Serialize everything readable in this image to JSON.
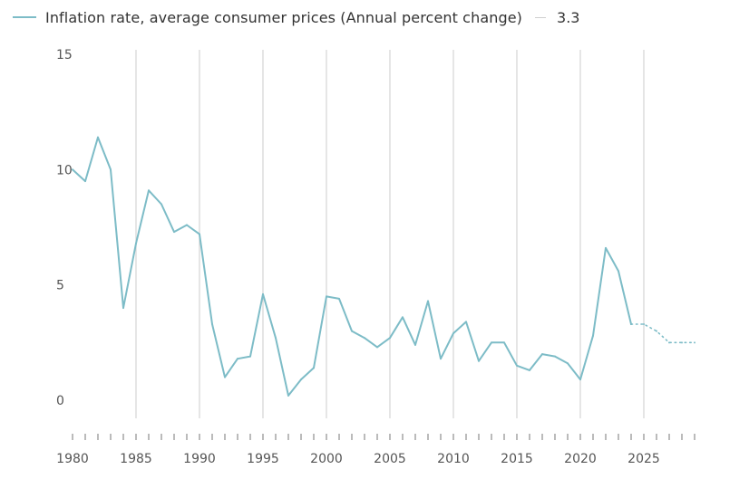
{
  "legend": {
    "series_label": "Inflation rate, average consumer prices (Annual percent change)",
    "latest_value": "3.3"
  },
  "colors": {
    "line": "#7dbcc7",
    "grid": "#d4d4d4",
    "axis": "#777777"
  },
  "chart_data": {
    "type": "line",
    "title": "",
    "xlabel": "",
    "ylabel": "",
    "xlim": [
      1980,
      2029
    ],
    "ylim": [
      0,
      15
    ],
    "yticks": [
      0,
      5,
      10,
      15
    ],
    "xticks": [
      1980,
      1985,
      1990,
      1995,
      2000,
      2005,
      2010,
      2015,
      2020,
      2025
    ],
    "grid": "vertical",
    "legend_position": "top",
    "series": [
      {
        "name": "Inflation rate, average consumer prices (Annual percent change)",
        "style": "solid",
        "x": [
          1980,
          1981,
          1982,
          1983,
          1984,
          1985,
          1986,
          1987,
          1988,
          1989,
          1990,
          1991,
          1992,
          1993,
          1994,
          1995,
          1996,
          1997,
          1998,
          1999,
          2000,
          2001,
          2002,
          2003,
          2004,
          2005,
          2006,
          2007,
          2008,
          2009,
          2010,
          2011,
          2012,
          2013,
          2014,
          2015,
          2016,
          2017,
          2018,
          2019,
          2020,
          2021,
          2022,
          2023,
          2024
        ],
        "y": [
          10.0,
          9.5,
          11.4,
          10.0,
          4.0,
          6.8,
          9.1,
          8.5,
          7.3,
          7.6,
          7.2,
          3.3,
          1.0,
          1.8,
          1.9,
          4.6,
          2.7,
          0.2,
          0.9,
          1.4,
          4.5,
          4.4,
          3.0,
          2.7,
          2.3,
          2.7,
          3.6,
          2.4,
          4.3,
          1.8,
          2.9,
          3.4,
          1.7,
          2.5,
          2.5,
          1.5,
          1.3,
          2.0,
          1.9,
          1.6,
          0.9,
          2.8,
          6.6,
          5.6,
          3.3
        ]
      },
      {
        "name": "",
        "style": "dotted",
        "x": [
          2024,
          2025,
          2026,
          2027,
          2028,
          2029
        ],
        "y": [
          3.3,
          3.3,
          3.0,
          2.5,
          2.5,
          2.5
        ]
      }
    ]
  }
}
